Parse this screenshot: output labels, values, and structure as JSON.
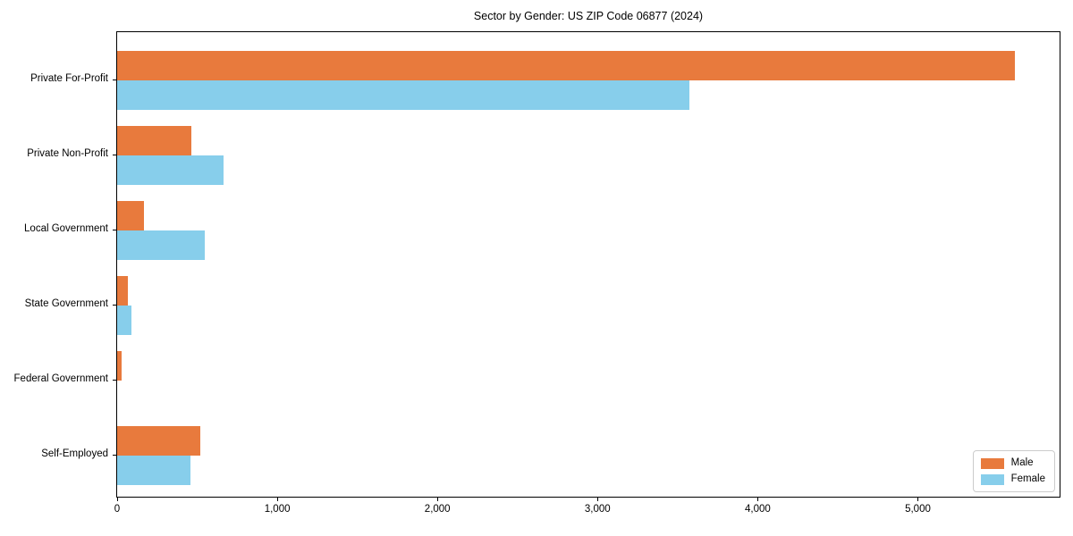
{
  "title": "Sector by Gender: US ZIP Code 06877 (2024)",
  "colors": {
    "male": "#E87A3D",
    "female": "#87CEEB",
    "axis": "#000000",
    "legend_border": "#CCCCCC",
    "background": "#FFFFFF"
  },
  "legend": {
    "position": "lower right",
    "items": [
      {
        "label": "Male",
        "color": "#E87A3D"
      },
      {
        "label": "Female",
        "color": "#87CEEB"
      }
    ]
  },
  "chart_data": {
    "type": "bar",
    "orientation": "horizontal",
    "title": "Sector by Gender: US ZIP Code 06877 (2024)",
    "categories": [
      "Private For-Profit",
      "Private Non-Profit",
      "Local Government",
      "State Government",
      "Federal Government",
      "Self-Employed"
    ],
    "series": [
      {
        "name": "Male",
        "color": "#E87A3D",
        "values": [
          5605,
          465,
          170,
          68,
          27,
          520
        ]
      },
      {
        "name": "Female",
        "color": "#87CEEB",
        "values": [
          3575,
          665,
          545,
          90,
          0,
          460
        ]
      }
    ],
    "xlabel": "",
    "ylabel": "",
    "xlim": [
      0,
      5885
    ],
    "x_ticks": [
      0,
      1000,
      2000,
      3000,
      4000,
      5000
    ],
    "x_tick_labels": [
      "0",
      "1,000",
      "2,000",
      "3,000",
      "4,000",
      "5,000"
    ],
    "grid": false,
    "legend_position": "lower right"
  }
}
